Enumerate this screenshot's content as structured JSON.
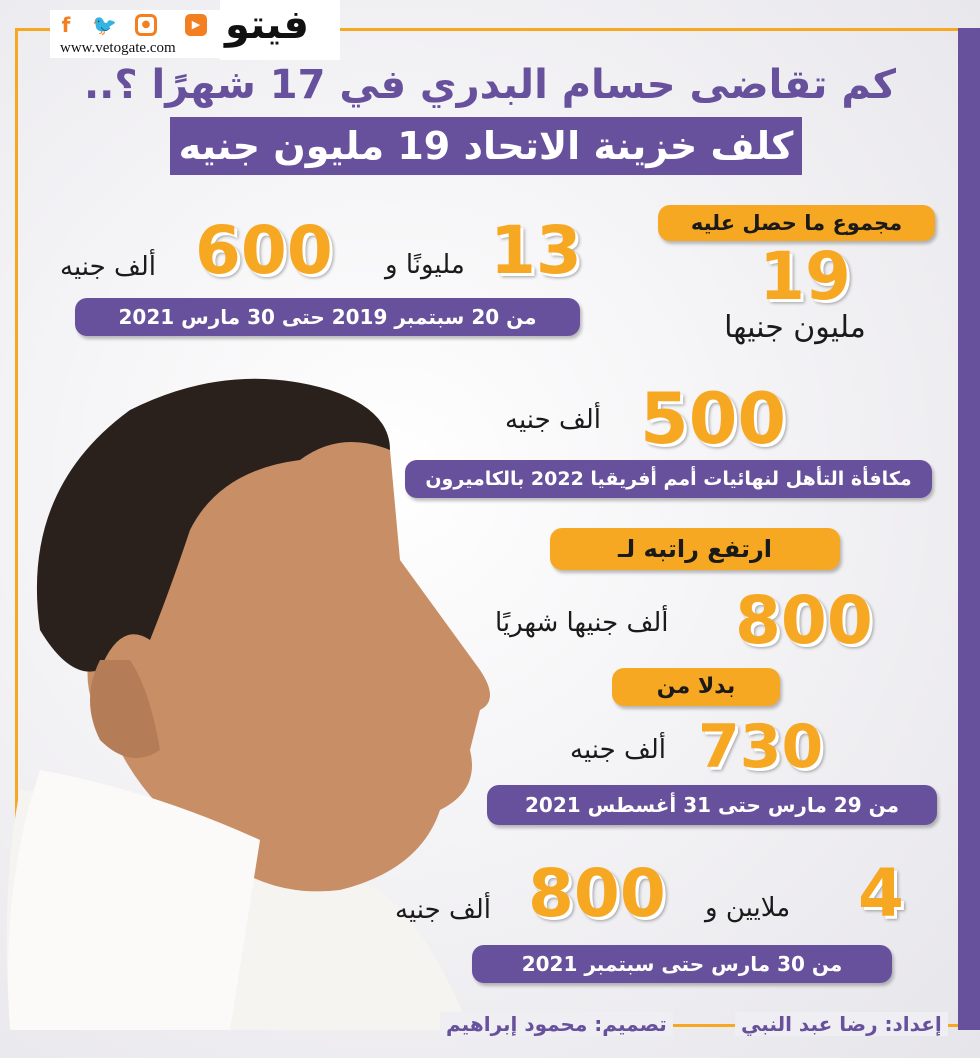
{
  "brand": {
    "logo_text": "فيتو",
    "url": "www.vetogate.com",
    "social": [
      "facebook-icon",
      "twitter-icon",
      "instagram-icon",
      "youtube-icon"
    ],
    "accent": "#f7a823",
    "purple": "#67509c"
  },
  "title": {
    "line1": "كم تقاضى حسام البدري في 17 شهرًا ؟..",
    "line2": "كلف خزينة الاتحاد 19 مليون جنيه"
  },
  "total": {
    "label": "مجموع ما حصل عليه",
    "value": "19",
    "unit": "مليون جنيها"
  },
  "salary1": {
    "millions": "13",
    "millions_label": "مليونًا و",
    "thousands": "600",
    "thousands_label": "ألف جنيه",
    "period": "من 20 سبتمبر 2019 حتى 30 مارس 2021"
  },
  "bonus": {
    "value": "500",
    "unit": "ألف جنيه",
    "desc": "مكافأة التأهل لنهائيات أمم أفريقيا 2022 بالكاميرون"
  },
  "raise": {
    "label": "ارتفع راتبه لـ",
    "value": "800",
    "unit": "ألف جنيها شهريًا",
    "instead_label": "بدلا من",
    "old_value": "730",
    "old_unit": "ألف جنيه",
    "period": "من 29 مارس حتى 31 أغسطس 2021"
  },
  "salary2": {
    "millions": "4",
    "millions_label": "ملايين و",
    "thousands": "800",
    "thousands_label": "ألف جنيه",
    "period": "من 30 مارس حتى سبتمبر 2021"
  },
  "credits": {
    "prepared": "إعداد: رضا عبد النبي",
    "design": "تصميم: محمود إبراهيم"
  }
}
